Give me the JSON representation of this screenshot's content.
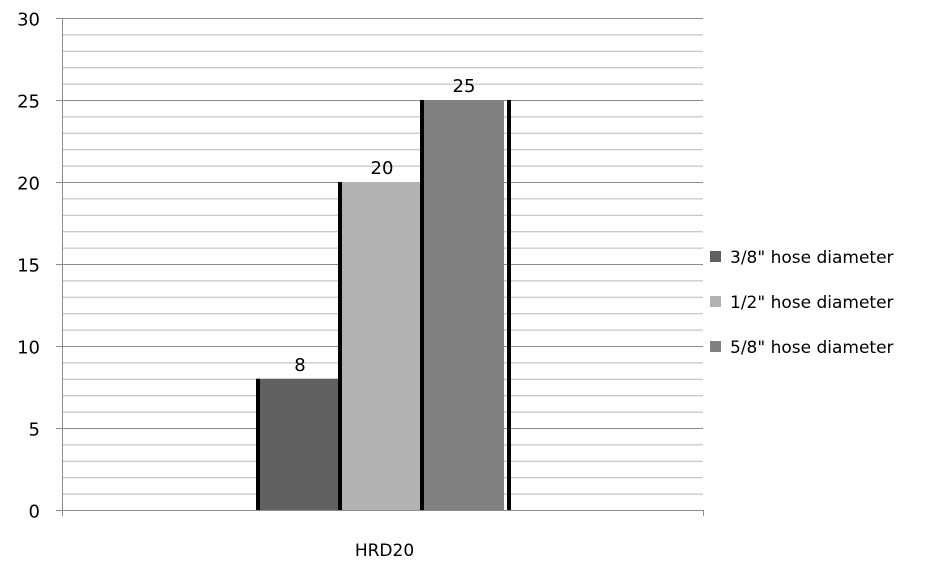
{
  "chart_data": {
    "type": "bar",
    "categories": [
      "HRD20"
    ],
    "series": [
      {
        "name": "3/8\" hose diameter",
        "values": [
          8
        ],
        "color": "#606060"
      },
      {
        "name": "1/2\" hose diameter",
        "values": [
          20
        ],
        "color": "#b2b2b2"
      },
      {
        "name": "5/8\" hose diameter",
        "values": [
          25
        ],
        "color": "#808080"
      }
    ],
    "ylim": [
      0,
      30
    ],
    "yticks": [
      "0",
      "5",
      "10",
      "15",
      "20",
      "25",
      "30"
    ],
    "data_labels": [
      "8",
      "20",
      "25"
    ],
    "xlabel": "",
    "ylabel": "",
    "grid": true,
    "legend_position": "right"
  }
}
